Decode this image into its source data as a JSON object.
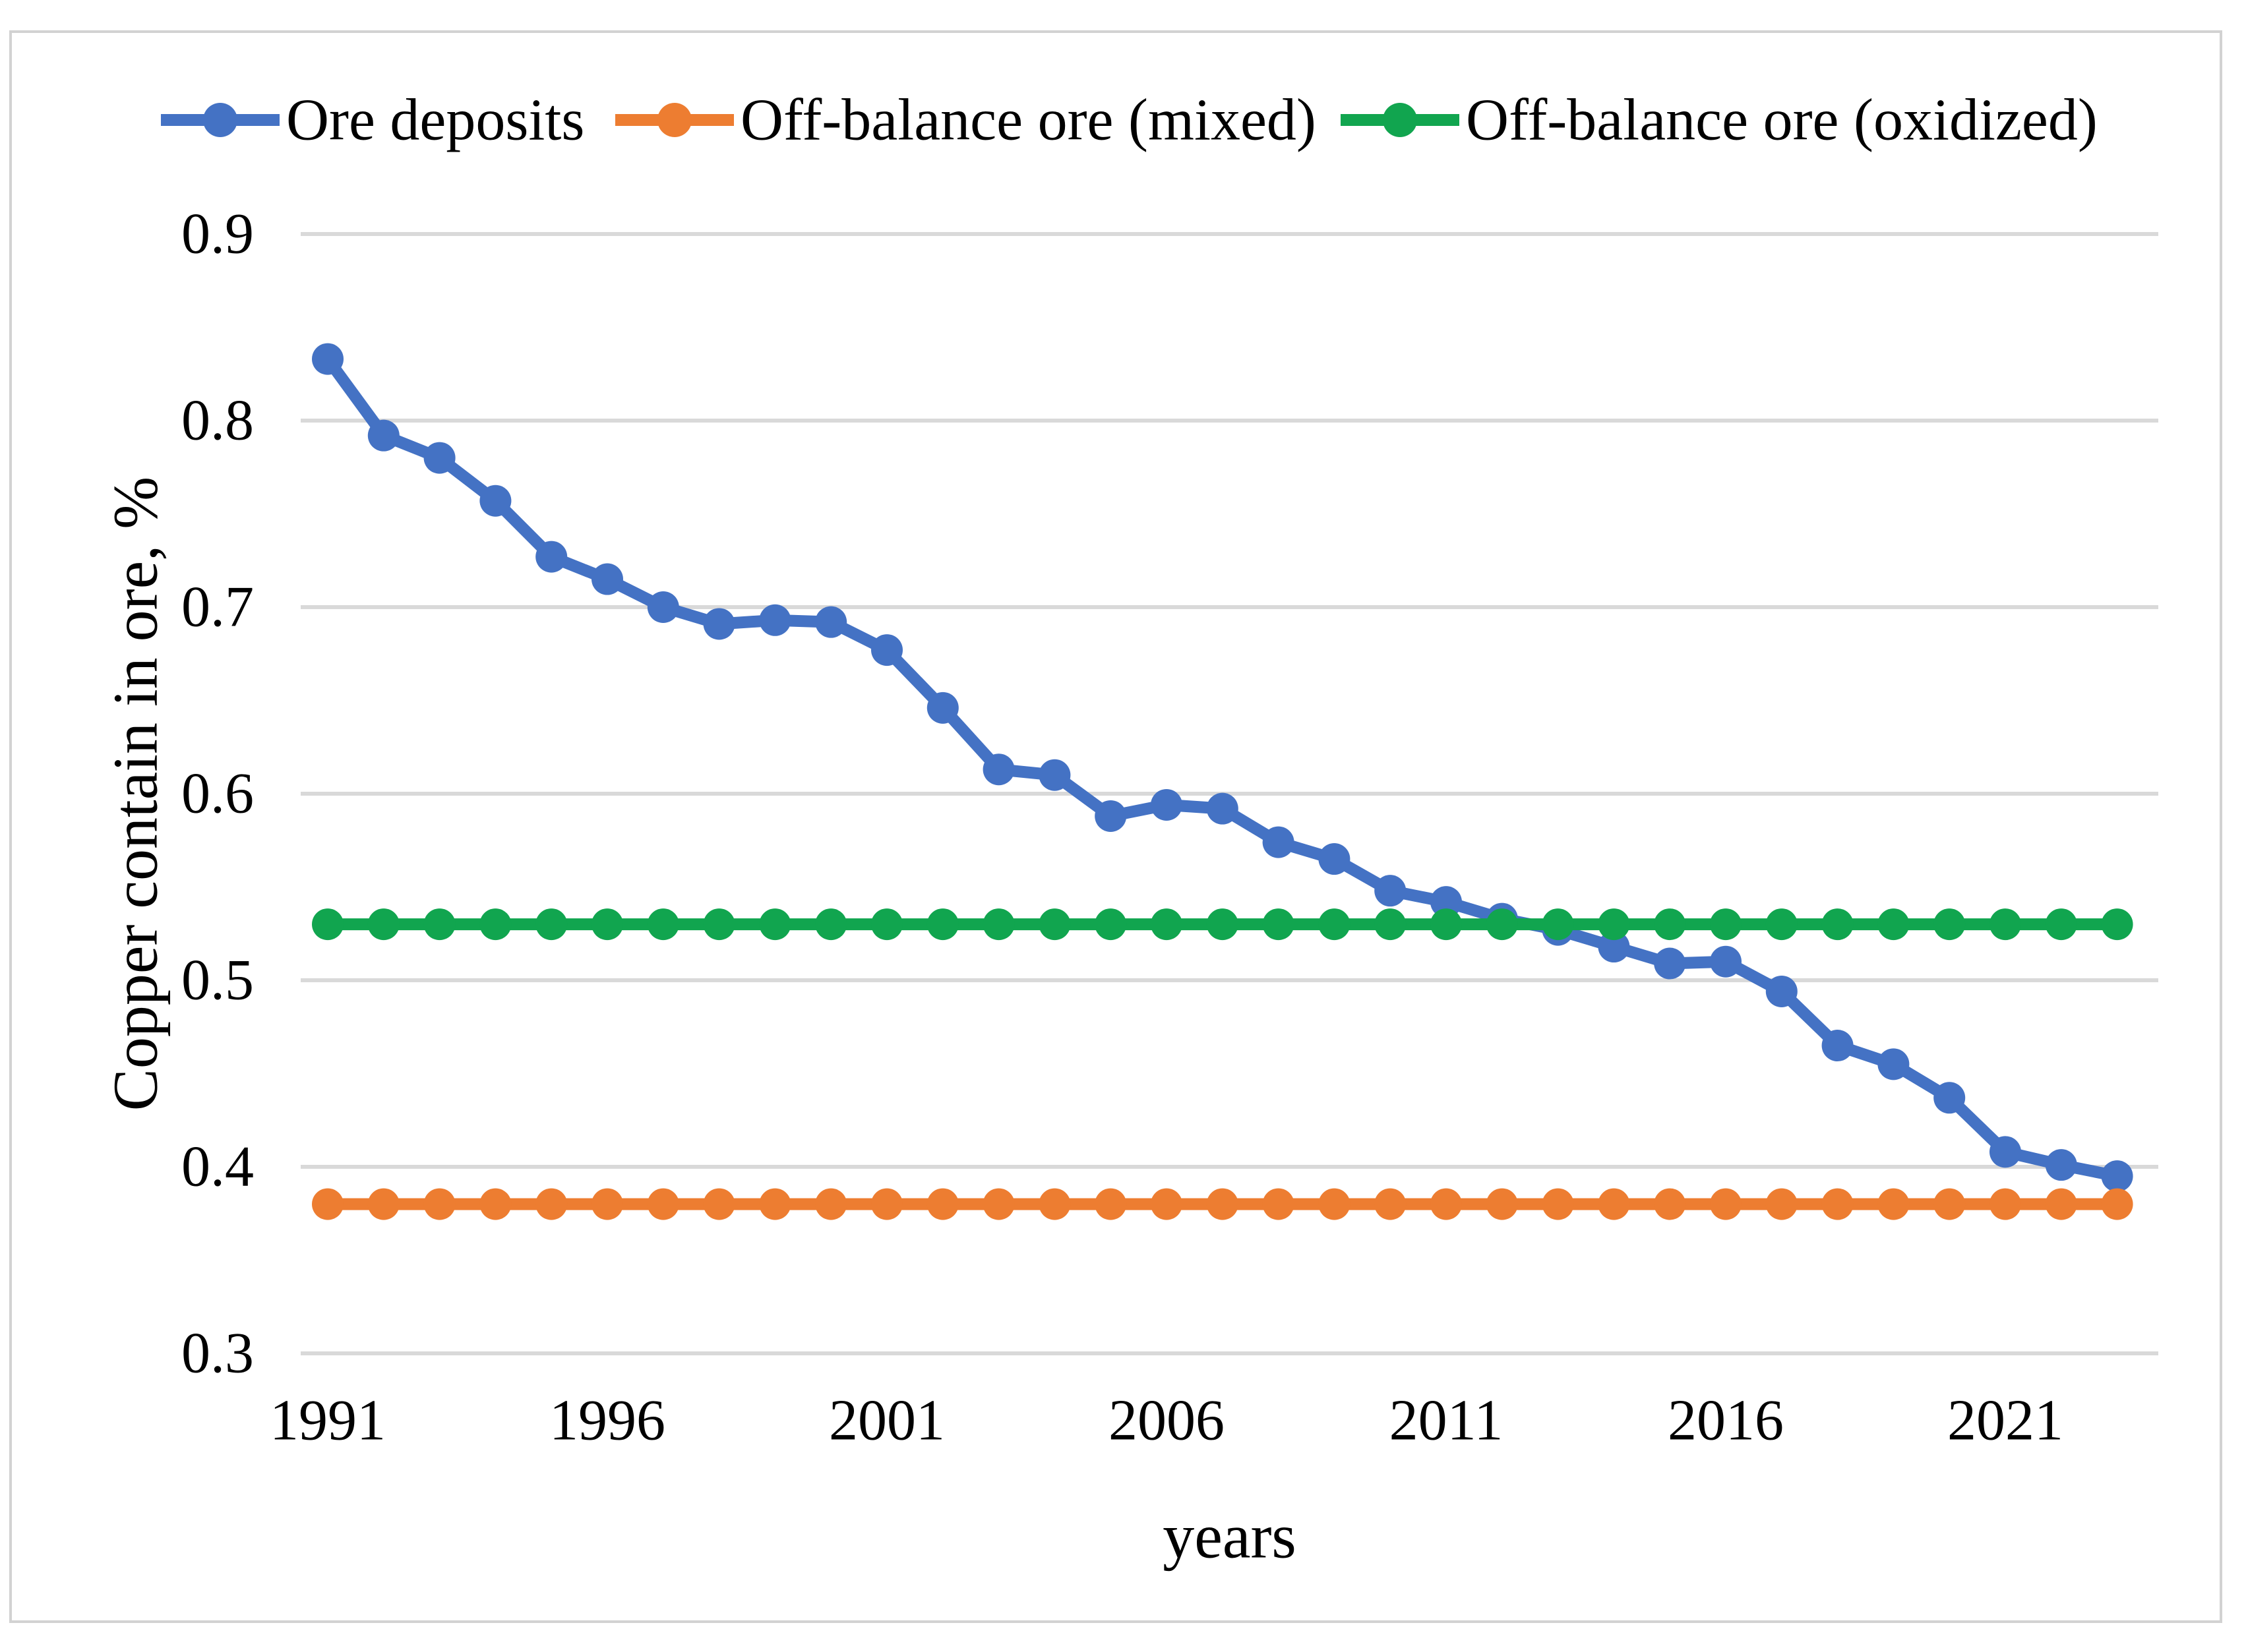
{
  "figure": {
    "background": "#FFFFFF",
    "border_color": "#D2D2D2"
  },
  "chart_data": {
    "type": "line",
    "title": "",
    "xlabel": "years",
    "ylabel": "Copper contain in ore, %",
    "x": [
      1991,
      1992,
      1993,
      1994,
      1995,
      1996,
      1997,
      1998,
      1999,
      2000,
      2001,
      2002,
      2003,
      2004,
      2005,
      2006,
      2007,
      2008,
      2009,
      2010,
      2011,
      2012,
      2013,
      2014,
      2015,
      2016,
      2017,
      2018,
      2019,
      2020,
      2021,
      2022,
      2023
    ],
    "x_tick_years": [
      1991,
      1996,
      2001,
      2006,
      2011,
      2016,
      2021
    ],
    "y_ticks": [
      0.9,
      0.8,
      0.7,
      0.6,
      0.5,
      0.4,
      0.3
    ],
    "ylim": [
      0.3,
      0.9
    ],
    "grid": "horizontal",
    "gridline_color": "#D9D9D9",
    "legend_position": "top",
    "series": [
      {
        "name": "Ore deposits",
        "color": "#4472C4",
        "values": [
          0.833,
          0.792,
          0.78,
          0.757,
          0.727,
          0.715,
          0.7,
          0.691,
          0.693,
          0.692,
          0.677,
          0.646,
          0.613,
          0.61,
          0.588,
          0.594,
          0.592,
          0.574,
          0.565,
          0.548,
          0.542,
          0.533,
          0.527,
          0.518,
          0.509,
          0.51,
          0.494,
          0.465,
          0.455,
          0.437,
          0.408,
          0.401,
          0.395
        ]
      },
      {
        "name": "Off-balance ore (mixed)",
        "color": "#ED7D31",
        "values": [
          0.38,
          0.38,
          0.38,
          0.38,
          0.38,
          0.38,
          0.38,
          0.38,
          0.38,
          0.38,
          0.38,
          0.38,
          0.38,
          0.38,
          0.38,
          0.38,
          0.38,
          0.38,
          0.38,
          0.38,
          0.38,
          0.38,
          0.38,
          0.38,
          0.38,
          0.38,
          0.38,
          0.38,
          0.38,
          0.38,
          0.38,
          0.38,
          0.38
        ]
      },
      {
        "name": "Off-balance ore (oxidized)",
        "color": "#11A54F",
        "values": [
          0.53,
          0.53,
          0.53,
          0.53,
          0.53,
          0.53,
          0.53,
          0.53,
          0.53,
          0.53,
          0.53,
          0.53,
          0.53,
          0.53,
          0.53,
          0.53,
          0.53,
          0.53,
          0.53,
          0.53,
          0.53,
          0.53,
          0.53,
          0.53,
          0.53,
          0.53,
          0.53,
          0.53,
          0.53,
          0.53,
          0.53,
          0.53,
          0.53
        ]
      }
    ]
  }
}
